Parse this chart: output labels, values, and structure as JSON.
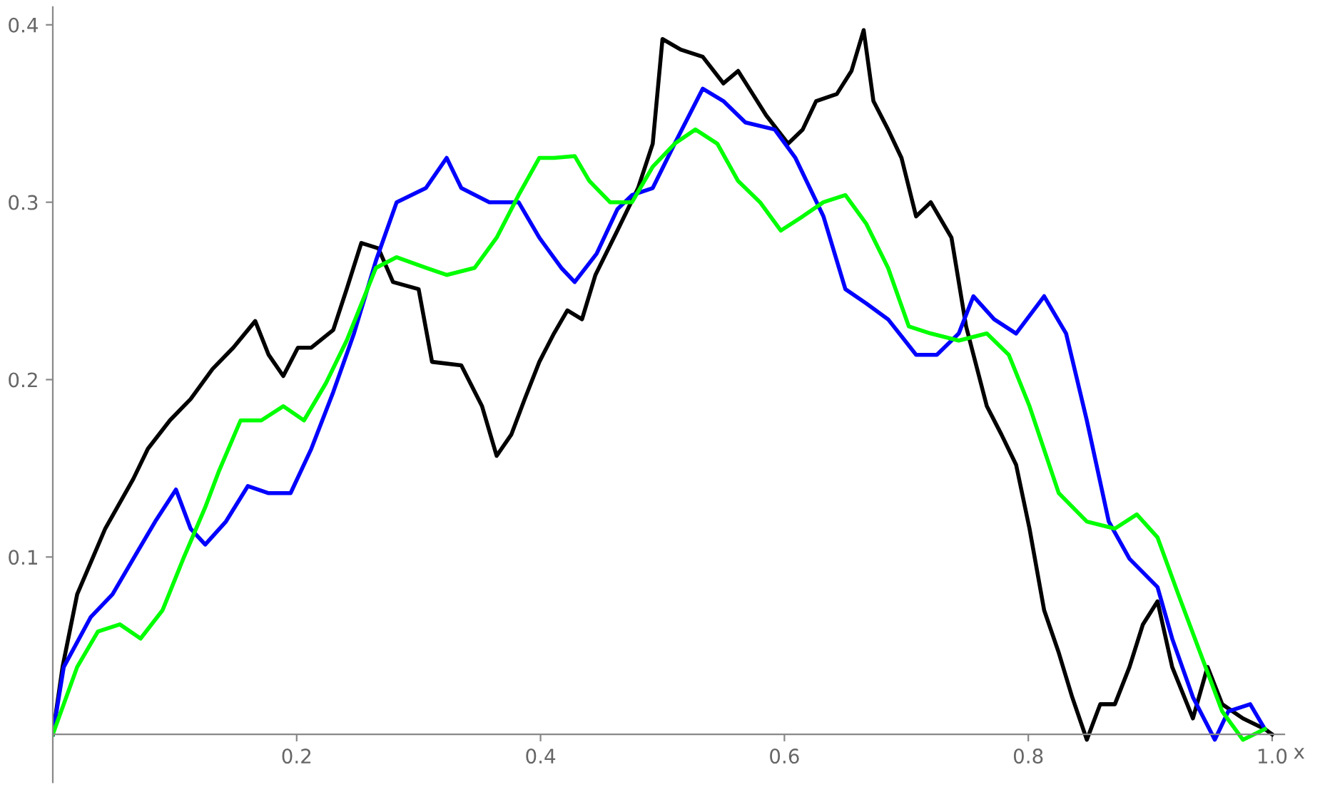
{
  "chart_data": {
    "type": "line",
    "xlabel": "x",
    "xlim": [
      0,
      1.01
    ],
    "ylim": [
      -0.027,
      0.41
    ],
    "xticks": [
      0.2,
      0.4,
      0.6,
      0.8,
      {
        "value": 1.0,
        "label": "1.0"
      }
    ],
    "yticks": [
      0.1,
      0.2,
      0.3,
      0.4
    ],
    "grid": false,
    "marker": "none",
    "line_style": "solid",
    "series": [
      {
        "color": "#000000",
        "x": [
          0,
          0.008,
          0.02,
          0.043,
          0.066,
          0.078,
          0.096,
          0.113,
          0.131,
          0.148,
          0.166,
          0.177,
          0.189,
          0.201,
          0.212,
          0.23,
          0.241,
          0.253,
          0.267,
          0.279,
          0.3,
          0.311,
          0.335,
          0.352,
          0.364,
          0.376,
          0.387,
          0.399,
          0.411,
          0.422,
          0.434,
          0.445,
          0.463,
          0.48,
          0.492,
          0.5,
          0.515,
          0.533,
          0.55,
          0.562,
          0.574,
          0.585,
          0.603,
          0.615,
          0.626,
          0.643,
          0.655,
          0.665,
          0.673,
          0.685,
          0.696,
          0.708,
          0.72,
          0.737,
          0.749,
          0.766,
          0.778,
          0.79,
          0.801,
          0.813,
          0.825,
          0.836,
          0.848,
          0.859,
          0.871,
          0.883,
          0.894,
          0.906,
          0.918,
          0.935,
          0.947,
          0.959,
          0.976,
          0.994,
          1.0
        ],
        "values": [
          0,
          0.038,
          0.079,
          0.116,
          0.144,
          0.161,
          0.177,
          0.189,
          0.206,
          0.218,
          0.233,
          0.214,
          0.202,
          0.218,
          0.218,
          0.228,
          0.251,
          0.277,
          0.274,
          0.255,
          0.251,
          0.21,
          0.208,
          0.185,
          0.157,
          0.169,
          0.189,
          0.21,
          0.226,
          0.239,
          0.234,
          0.259,
          0.284,
          0.308,
          0.333,
          0.392,
          0.386,
          0.382,
          0.367,
          0.374,
          0.361,
          0.349,
          0.333,
          0.341,
          0.357,
          0.361,
          0.374,
          0.397,
          0.357,
          0.341,
          0.325,
          0.292,
          0.3,
          0.28,
          0.23,
          0.185,
          0.169,
          0.152,
          0.116,
          0.07,
          0.046,
          0.021,
          -0.003,
          0.017,
          0.017,
          0.038,
          0.062,
          0.075,
          0.038,
          0.009,
          0.038,
          0.017,
          0.009,
          0.003,
          0
        ]
      },
      {
        "color": "#0000ff",
        "x": [
          0,
          0.009,
          0.031,
          0.049,
          0.066,
          0.084,
          0.101,
          0.113,
          0.125,
          0.142,
          0.16,
          0.177,
          0.195,
          0.212,
          0.23,
          0.247,
          0.265,
          0.282,
          0.306,
          0.323,
          0.335,
          0.358,
          0.382,
          0.399,
          0.417,
          0.428,
          0.446,
          0.463,
          0.475,
          0.492,
          0.51,
          0.533,
          0.55,
          0.568,
          0.592,
          0.609,
          0.632,
          0.65,
          0.667,
          0.685,
          0.708,
          0.725,
          0.743,
          0.755,
          0.772,
          0.79,
          0.813,
          0.831,
          0.848,
          0.866,
          0.883,
          0.906,
          0.918,
          0.935,
          0.953,
          0.964,
          0.982,
          0.994
        ],
        "values": [
          0,
          0.038,
          0.066,
          0.079,
          0.099,
          0.12,
          0.138,
          0.116,
          0.107,
          0.12,
          0.14,
          0.136,
          0.136,
          0.161,
          0.193,
          0.226,
          0.267,
          0.3,
          0.308,
          0.325,
          0.308,
          0.3,
          0.3,
          0.28,
          0.263,
          0.255,
          0.271,
          0.296,
          0.304,
          0.308,
          0.333,
          0.364,
          0.357,
          0.345,
          0.341,
          0.325,
          0.292,
          0.251,
          0.243,
          0.234,
          0.214,
          0.214,
          0.226,
          0.247,
          0.234,
          0.226,
          0.247,
          0.226,
          0.177,
          0.12,
          0.099,
          0.083,
          0.054,
          0.021,
          -0.003,
          0.013,
          0.017,
          0.003
        ]
      },
      {
        "color": "#00ff00",
        "x": [
          0,
          0.02,
          0.037,
          0.055,
          0.072,
          0.09,
          0.107,
          0.125,
          0.136,
          0.154,
          0.171,
          0.189,
          0.206,
          0.224,
          0.241,
          0.265,
          0.282,
          0.306,
          0.323,
          0.346,
          0.364,
          0.382,
          0.399,
          0.411,
          0.428,
          0.44,
          0.457,
          0.475,
          0.492,
          0.51,
          0.527,
          0.545,
          0.562,
          0.58,
          0.597,
          0.615,
          0.632,
          0.65,
          0.667,
          0.685,
          0.702,
          0.72,
          0.743,
          0.766,
          0.784,
          0.801,
          0.825,
          0.848,
          0.871,
          0.889,
          0.906,
          0.923,
          0.941,
          0.959,
          0.976,
          0.994
        ],
        "values": [
          0,
          0.038,
          0.058,
          0.062,
          0.054,
          0.07,
          0.099,
          0.128,
          0.148,
          0.177,
          0.177,
          0.185,
          0.177,
          0.198,
          0.222,
          0.263,
          0.269,
          0.263,
          0.259,
          0.263,
          0.28,
          0.304,
          0.325,
          0.325,
          0.326,
          0.312,
          0.3,
          0.3,
          0.32,
          0.333,
          0.341,
          0.333,
          0.312,
          0.3,
          0.284,
          0.292,
          0.3,
          0.304,
          0.288,
          0.263,
          0.23,
          0.226,
          0.222,
          0.226,
          0.214,
          0.185,
          0.136,
          0.12,
          0.116,
          0.124,
          0.111,
          0.079,
          0.046,
          0.013,
          -0.003,
          0.003
        ]
      }
    ]
  }
}
